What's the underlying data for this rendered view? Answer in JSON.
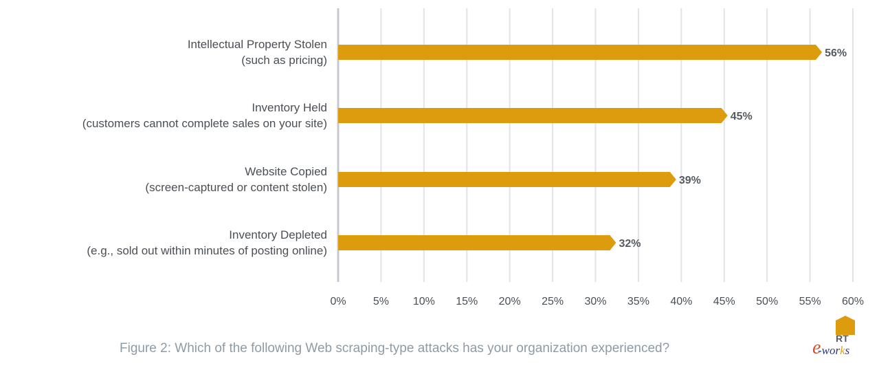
{
  "chart_data": {
    "type": "bar",
    "orientation": "horizontal",
    "categories": [
      [
        "Intellectual Property Stolen",
        "(such as pricing)"
      ],
      [
        "Inventory Held",
        "(customers cannot complete sales on your site)"
      ],
      [
        "Website Copied",
        "(screen-captured or content stolen)"
      ],
      [
        "Inventory Depleted",
        "(e.g., sold out within minutes of posting online)"
      ]
    ],
    "values": [
      56,
      45,
      39,
      32
    ],
    "value_labels": [
      "56%",
      "45%",
      "39%",
      "32%"
    ],
    "xlim": [
      0,
      60
    ],
    "xticks": [
      "0%",
      "5%",
      "10%",
      "15%",
      "20%",
      "25%",
      "30%",
      "35%",
      "40%",
      "45%",
      "50%",
      "55%",
      "60%"
    ],
    "grid": true,
    "bar_color": "#dc9c0e",
    "title": "Figure 2: Which of the following Web scraping-type attacks has your organization experienced?"
  },
  "logo": {
    "text": "RT",
    "color": "#dc9c0e"
  },
  "watermark": {
    "prefix": "e",
    "main": "-wor",
    "accent": "k",
    "suffix": "s"
  }
}
